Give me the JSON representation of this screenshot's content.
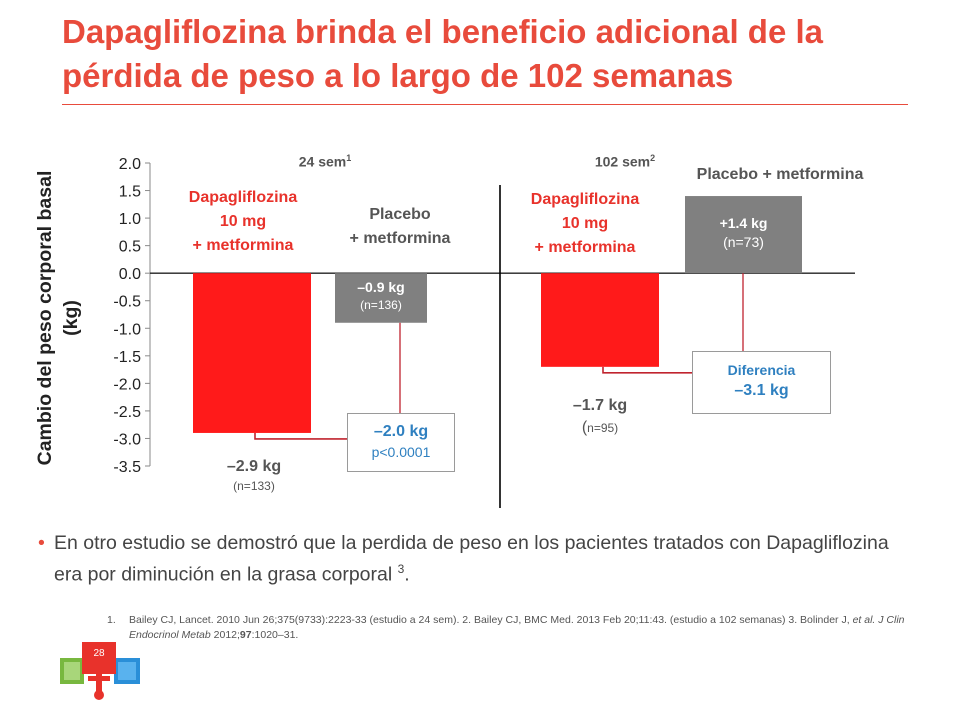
{
  "title": "Dapagliflozina brinda el beneficio adicional de la pérdida de peso a lo largo de 102 semanas",
  "colors": {
    "accent": "#e84b3c",
    "bar_red": "#ff1a1a",
    "bar_gray": "#808080",
    "blue_text": "#2f80c0"
  },
  "chart_data": {
    "type": "bar",
    "ylabel": "Cambio del peso corporal basal (kg)",
    "ylim": [
      -3.5,
      2.0
    ],
    "yticks": [
      "2.0",
      "1.5",
      "1.0",
      "0.5",
      "0.0",
      "-0.5",
      "-1.0",
      "-1.5",
      "-2.0",
      "-2.5",
      "-3.0",
      "-3.5"
    ],
    "ytick_values": [
      2.0,
      1.5,
      1.0,
      0.5,
      0.0,
      -0.5,
      -1.0,
      -1.5,
      -2.0,
      -2.5,
      -3.0,
      -3.5
    ],
    "groups": [
      {
        "header": "24 sem",
        "header_sup": "1",
        "bars": [
          {
            "series": "Dapagliflozina 10 mg + metformina",
            "name_lines": [
              "Dapagliflozina",
              "10 mg",
              "+ metformina"
            ],
            "value": -2.9,
            "value_label": "–2.9 kg",
            "n_label": "(n=133)"
          },
          {
            "series": "Placebo + metformina",
            "name_lines": [
              "Placebo",
              "+ metformina"
            ],
            "value": -0.9,
            "value_label": "–0.9 kg",
            "n_label": "(n=136)"
          }
        ],
        "difference": {
          "value_label": "–2.0 kg",
          "note": "p<0.0001"
        }
      },
      {
        "header": "102 sem",
        "header_sup": "2",
        "bars": [
          {
            "series": "Dapagliflozina 10 mg + metformina",
            "name_lines": [
              "Dapagliflozina",
              "10 mg",
              "+ metformina"
            ],
            "value": -1.7,
            "value_label": "–1.7 kg",
            "n_prefix": "(",
            "n_label": "n=95)"
          },
          {
            "series": "Placebo + metformina",
            "name_lines": [
              "Placebo + metformina"
            ],
            "value": 1.4,
            "value_label": "+1.4 kg",
            "n_label": "(n=73)"
          }
        ],
        "difference": {
          "label": "Diferencia",
          "value_label": "–3.1 kg"
        }
      }
    ]
  },
  "bullet": {
    "text": "En otro estudio se demostró que la perdida de peso en los pacientes tratados con Dapagliflozina era por diminución en la grasa corporal",
    "sup": "3",
    "end": "."
  },
  "references": {
    "num": "1.",
    "part1": "Bailey CJ, Lancet. 2010 Jun 26;375(9733):2223-33   (estudio a 24 sem). 2. Bailey CJ, BMC Med. 2013 Feb 20;11:43. (estudio a 102 semanas)  3. Bolinder J,",
    "etal": "et al.",
    "journal": "J Clin Endocrinol Metab",
    "year": "2012;",
    "vol": "97",
    "pages": ":1020–31."
  },
  "page_number": "28"
}
